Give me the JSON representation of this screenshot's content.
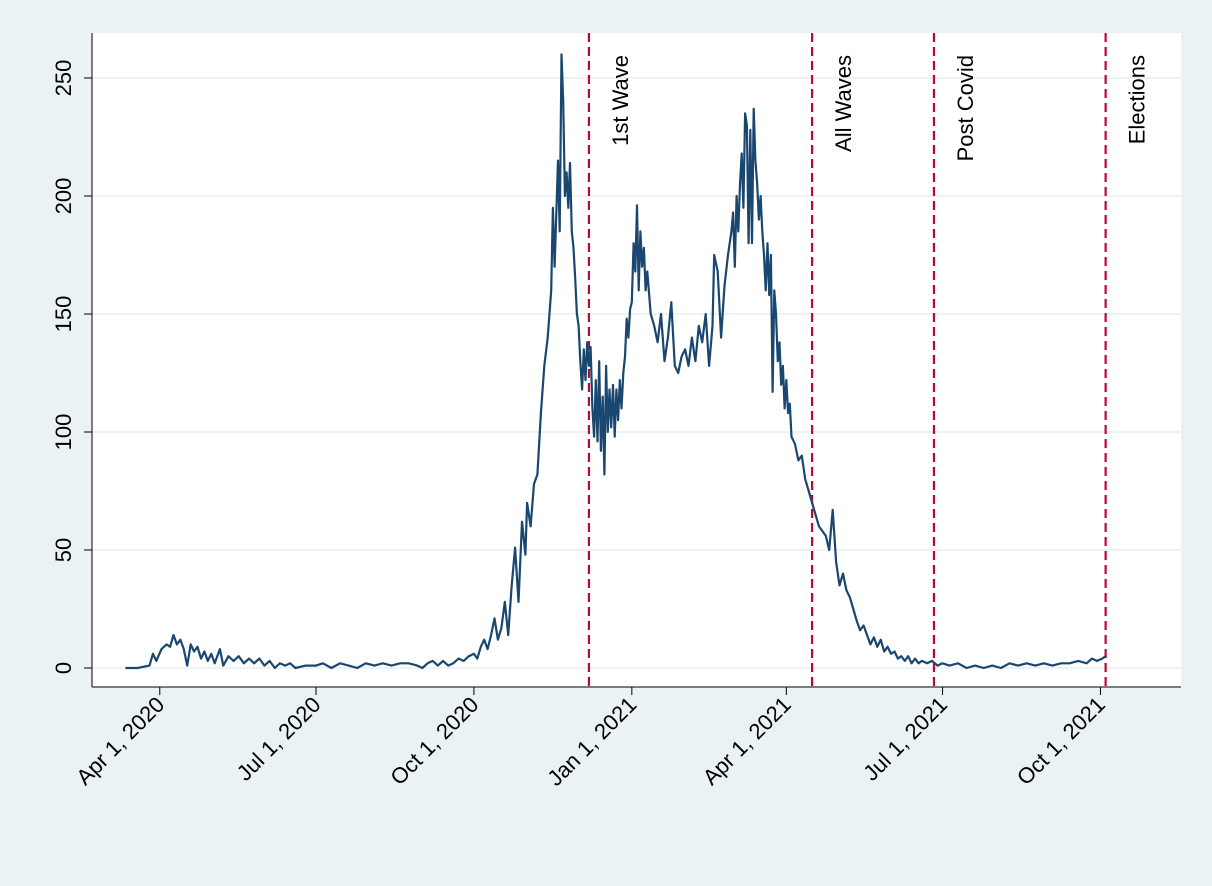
{
  "chart_data": {
    "type": "line",
    "title": "",
    "xlabel": "",
    "ylabel": "",
    "ylim": [
      0,
      270
    ],
    "xlim": [
      "2020-03-03",
      "2021-11-14"
    ],
    "y_ticks": [
      0,
      50,
      100,
      150,
      200,
      250
    ],
    "x_ticks": [
      {
        "date": "2020-04-01",
        "label": "Apr 1, 2020"
      },
      {
        "date": "2020-07-01",
        "label": "Jul 1, 2020"
      },
      {
        "date": "2020-10-01",
        "label": "Oct 1, 2020"
      },
      {
        "date": "2021-01-01",
        "label": "Jan 1, 2021"
      },
      {
        "date": "2021-04-01",
        "label": "Apr 1, 2021"
      },
      {
        "date": "2021-07-01",
        "label": "Jul 1, 2021"
      },
      {
        "date": "2021-10-01",
        "label": "Oct 1, 2021"
      }
    ],
    "grid": true,
    "colors": {
      "line": "#1a476f",
      "marker": "#c10534",
      "grid": "#e8eef2",
      "background": "#eaf2f3",
      "plot_background": "#ffffff"
    },
    "markers": [
      {
        "date": "2020-12-07",
        "label": "1st Wave"
      },
      {
        "date": "2021-04-16",
        "label": "All Waves"
      },
      {
        "date": "2021-06-26",
        "label": "Post Covid"
      },
      {
        "date": "2021-10-04",
        "label": "Elections"
      }
    ],
    "series": [
      {
        "points": [
          [
            "2020-03-12",
            0
          ],
          [
            "2020-03-19",
            0
          ],
          [
            "2020-03-26",
            1
          ],
          [
            "2020-03-28",
            6
          ],
          [
            "2020-03-30",
            3
          ],
          [
            "2020-04-02",
            8
          ],
          [
            "2020-04-05",
            10
          ],
          [
            "2020-04-07",
            9
          ],
          [
            "2020-04-09",
            14
          ],
          [
            "2020-04-11",
            10
          ],
          [
            "2020-04-13",
            12
          ],
          [
            "2020-04-15",
            8
          ],
          [
            "2020-04-17",
            1
          ],
          [
            "2020-04-19",
            10
          ],
          [
            "2020-04-21",
            7
          ],
          [
            "2020-04-23",
            9
          ],
          [
            "2020-04-25",
            4
          ],
          [
            "2020-04-27",
            7
          ],
          [
            "2020-04-29",
            3
          ],
          [
            "2020-05-01",
            6
          ],
          [
            "2020-05-03",
            2
          ],
          [
            "2020-05-06",
            8
          ],
          [
            "2020-05-08",
            1
          ],
          [
            "2020-05-11",
            5
          ],
          [
            "2020-05-14",
            3
          ],
          [
            "2020-05-17",
            5
          ],
          [
            "2020-05-20",
            2
          ],
          [
            "2020-05-23",
            4
          ],
          [
            "2020-05-26",
            2
          ],
          [
            "2020-05-29",
            4
          ],
          [
            "2020-06-01",
            1
          ],
          [
            "2020-06-04",
            3
          ],
          [
            "2020-06-07",
            0
          ],
          [
            "2020-06-10",
            2
          ],
          [
            "2020-06-13",
            1
          ],
          [
            "2020-06-16",
            2
          ],
          [
            "2020-06-19",
            0
          ],
          [
            "2020-06-25",
            1
          ],
          [
            "2020-07-01",
            1
          ],
          [
            "2020-07-05",
            2
          ],
          [
            "2020-07-10",
            0
          ],
          [
            "2020-07-15",
            2
          ],
          [
            "2020-07-20",
            1
          ],
          [
            "2020-07-25",
            0
          ],
          [
            "2020-07-30",
            2
          ],
          [
            "2020-08-04",
            1
          ],
          [
            "2020-08-09",
            2
          ],
          [
            "2020-08-14",
            1
          ],
          [
            "2020-08-19",
            2
          ],
          [
            "2020-08-24",
            2
          ],
          [
            "2020-08-29",
            1
          ],
          [
            "2020-09-01",
            0
          ],
          [
            "2020-09-04",
            2
          ],
          [
            "2020-09-07",
            3
          ],
          [
            "2020-09-10",
            1
          ],
          [
            "2020-09-13",
            3
          ],
          [
            "2020-09-16",
            1
          ],
          [
            "2020-09-19",
            2
          ],
          [
            "2020-09-22",
            4
          ],
          [
            "2020-09-25",
            3
          ],
          [
            "2020-09-28",
            5
          ],
          [
            "2020-10-01",
            6
          ],
          [
            "2020-10-03",
            4
          ],
          [
            "2020-10-05",
            9
          ],
          [
            "2020-10-07",
            12
          ],
          [
            "2020-10-09",
            8
          ],
          [
            "2020-10-11",
            14
          ],
          [
            "2020-10-13",
            21
          ],
          [
            "2020-10-15",
            12
          ],
          [
            "2020-10-17",
            17
          ],
          [
            "2020-10-19",
            28
          ],
          [
            "2020-10-21",
            14
          ],
          [
            "2020-10-23",
            35
          ],
          [
            "2020-10-25",
            51
          ],
          [
            "2020-10-27",
            28
          ],
          [
            "2020-10-29",
            62
          ],
          [
            "2020-10-31",
            48
          ],
          [
            "2020-11-01",
            70
          ],
          [
            "2020-11-03",
            60
          ],
          [
            "2020-11-05",
            78
          ],
          [
            "2020-11-07",
            82
          ],
          [
            "2020-11-09",
            108
          ],
          [
            "2020-11-11",
            128
          ],
          [
            "2020-11-13",
            140
          ],
          [
            "2020-11-15",
            160
          ],
          [
            "2020-11-16",
            195
          ],
          [
            "2020-11-17",
            170
          ],
          [
            "2020-11-19",
            215
          ],
          [
            "2020-11-20",
            185
          ],
          [
            "2020-11-21",
            260
          ],
          [
            "2020-11-22",
            240
          ],
          [
            "2020-11-23",
            200
          ],
          [
            "2020-11-24",
            210
          ],
          [
            "2020-11-25",
            195
          ],
          [
            "2020-11-26",
            214
          ],
          [
            "2020-11-27",
            185
          ],
          [
            "2020-11-28",
            178
          ],
          [
            "2020-11-29",
            165
          ],
          [
            "2020-11-30",
            150
          ],
          [
            "2020-12-01",
            145
          ],
          [
            "2020-12-02",
            130
          ],
          [
            "2020-12-03",
            118
          ],
          [
            "2020-12-04",
            135
          ],
          [
            "2020-12-05",
            122
          ],
          [
            "2020-12-06",
            138
          ],
          [
            "2020-12-07",
            128
          ],
          [
            "2020-12-08",
            136
          ],
          [
            "2020-12-09",
            110
          ],
          [
            "2020-12-10",
            98
          ],
          [
            "2020-12-11",
            122
          ],
          [
            "2020-12-12",
            96
          ],
          [
            "2020-12-13",
            130
          ],
          [
            "2020-12-14",
            92
          ],
          [
            "2020-12-15",
            115
          ],
          [
            "2020-12-16",
            82
          ],
          [
            "2020-12-17",
            128
          ],
          [
            "2020-12-18",
            100
          ],
          [
            "2020-12-19",
            118
          ],
          [
            "2020-12-20",
            102
          ],
          [
            "2020-12-21",
            120
          ],
          [
            "2020-12-22",
            98
          ],
          [
            "2020-12-23",
            118
          ],
          [
            "2020-12-24",
            105
          ],
          [
            "2020-12-25",
            122
          ],
          [
            "2020-12-26",
            110
          ],
          [
            "2020-12-27",
            125
          ],
          [
            "2020-12-28",
            132
          ],
          [
            "2020-12-29",
            148
          ],
          [
            "2020-12-30",
            140
          ],
          [
            "2020-12-31",
            152
          ],
          [
            "2021-01-01",
            155
          ],
          [
            "2021-01-02",
            180
          ],
          [
            "2021-01-03",
            168
          ],
          [
            "2021-01-04",
            196
          ],
          [
            "2021-01-05",
            160
          ],
          [
            "2021-01-06",
            185
          ],
          [
            "2021-01-07",
            170
          ],
          [
            "2021-01-08",
            178
          ],
          [
            "2021-01-09",
            160
          ],
          [
            "2021-01-10",
            168
          ],
          [
            "2021-01-12",
            150
          ],
          [
            "2021-01-14",
            145
          ],
          [
            "2021-01-16",
            138
          ],
          [
            "2021-01-18",
            150
          ],
          [
            "2021-01-20",
            130
          ],
          [
            "2021-01-22",
            140
          ],
          [
            "2021-01-24",
            155
          ],
          [
            "2021-01-26",
            128
          ],
          [
            "2021-01-28",
            125
          ],
          [
            "2021-01-30",
            132
          ],
          [
            "2021-02-01",
            135
          ],
          [
            "2021-02-03",
            128
          ],
          [
            "2021-02-05",
            140
          ],
          [
            "2021-02-07",
            130
          ],
          [
            "2021-02-09",
            145
          ],
          [
            "2021-02-11",
            138
          ],
          [
            "2021-02-13",
            150
          ],
          [
            "2021-02-15",
            128
          ],
          [
            "2021-02-17",
            145
          ],
          [
            "2021-02-18",
            175
          ],
          [
            "2021-02-20",
            168
          ],
          [
            "2021-02-22",
            140
          ],
          [
            "2021-02-24",
            162
          ],
          [
            "2021-02-26",
            175
          ],
          [
            "2021-02-28",
            185
          ],
          [
            "2021-03-01",
            193
          ],
          [
            "2021-03-02",
            170
          ],
          [
            "2021-03-03",
            200
          ],
          [
            "2021-03-04",
            185
          ],
          [
            "2021-03-05",
            205
          ],
          [
            "2021-03-06",
            218
          ],
          [
            "2021-03-07",
            195
          ],
          [
            "2021-03-08",
            235
          ],
          [
            "2021-03-09",
            230
          ],
          [
            "2021-03-10",
            180
          ],
          [
            "2021-03-11",
            228
          ],
          [
            "2021-03-12",
            180
          ],
          [
            "2021-03-13",
            237
          ],
          [
            "2021-03-14",
            215
          ],
          [
            "2021-03-15",
            205
          ],
          [
            "2021-03-16",
            190
          ],
          [
            "2021-03-17",
            200
          ],
          [
            "2021-03-18",
            185
          ],
          [
            "2021-03-19",
            175
          ],
          [
            "2021-03-20",
            160
          ],
          [
            "2021-03-21",
            180
          ],
          [
            "2021-03-22",
            158
          ],
          [
            "2021-03-23",
            175
          ],
          [
            "2021-03-24",
            117
          ],
          [
            "2021-03-25",
            160
          ],
          [
            "2021-03-26",
            150
          ],
          [
            "2021-03-27",
            130
          ],
          [
            "2021-03-28",
            138
          ],
          [
            "2021-03-29",
            120
          ],
          [
            "2021-03-30",
            128
          ],
          [
            "2021-03-31",
            110
          ],
          [
            "2021-04-01",
            122
          ],
          [
            "2021-04-02",
            108
          ],
          [
            "2021-04-03",
            112
          ],
          [
            "2021-04-04",
            98
          ],
          [
            "2021-04-06",
            95
          ],
          [
            "2021-04-08",
            88
          ],
          [
            "2021-04-10",
            90
          ],
          [
            "2021-04-12",
            80
          ],
          [
            "2021-04-14",
            75
          ],
          [
            "2021-04-16",
            70
          ],
          [
            "2021-04-18",
            65
          ],
          [
            "2021-04-20",
            60
          ],
          [
            "2021-04-22",
            58
          ],
          [
            "2021-04-24",
            56
          ],
          [
            "2021-04-26",
            50
          ],
          [
            "2021-04-28",
            67
          ],
          [
            "2021-04-30",
            45
          ],
          [
            "2021-05-02",
            35
          ],
          [
            "2021-05-04",
            40
          ],
          [
            "2021-05-06",
            33
          ],
          [
            "2021-05-08",
            30
          ],
          [
            "2021-05-10",
            25
          ],
          [
            "2021-05-12",
            20
          ],
          [
            "2021-05-14",
            16
          ],
          [
            "2021-05-16",
            18
          ],
          [
            "2021-05-18",
            14
          ],
          [
            "2021-05-20",
            10
          ],
          [
            "2021-05-22",
            13
          ],
          [
            "2021-05-24",
            9
          ],
          [
            "2021-05-26",
            12
          ],
          [
            "2021-05-28",
            7
          ],
          [
            "2021-05-30",
            9
          ],
          [
            "2021-06-01",
            6
          ],
          [
            "2021-06-03",
            7
          ],
          [
            "2021-06-05",
            4
          ],
          [
            "2021-06-07",
            5
          ],
          [
            "2021-06-09",
            3
          ],
          [
            "2021-06-11",
            5
          ],
          [
            "2021-06-13",
            2
          ],
          [
            "2021-06-15",
            4
          ],
          [
            "2021-06-17",
            2
          ],
          [
            "2021-06-19",
            3
          ],
          [
            "2021-06-22",
            2
          ],
          [
            "2021-06-25",
            3
          ],
          [
            "2021-06-28",
            1
          ],
          [
            "2021-07-01",
            2
          ],
          [
            "2021-07-05",
            1
          ],
          [
            "2021-07-10",
            2
          ],
          [
            "2021-07-15",
            0
          ],
          [
            "2021-07-20",
            1
          ],
          [
            "2021-07-25",
            0
          ],
          [
            "2021-07-30",
            1
          ],
          [
            "2021-08-04",
            0
          ],
          [
            "2021-08-09",
            2
          ],
          [
            "2021-08-14",
            1
          ],
          [
            "2021-08-19",
            2
          ],
          [
            "2021-08-24",
            1
          ],
          [
            "2021-08-29",
            2
          ],
          [
            "2021-09-03",
            1
          ],
          [
            "2021-09-08",
            2
          ],
          [
            "2021-09-13",
            2
          ],
          [
            "2021-09-18",
            3
          ],
          [
            "2021-09-23",
            2
          ],
          [
            "2021-09-26",
            4
          ],
          [
            "2021-09-29",
            3
          ],
          [
            "2021-10-02",
            4
          ],
          [
            "2021-10-04",
            5
          ]
        ]
      }
    ]
  }
}
